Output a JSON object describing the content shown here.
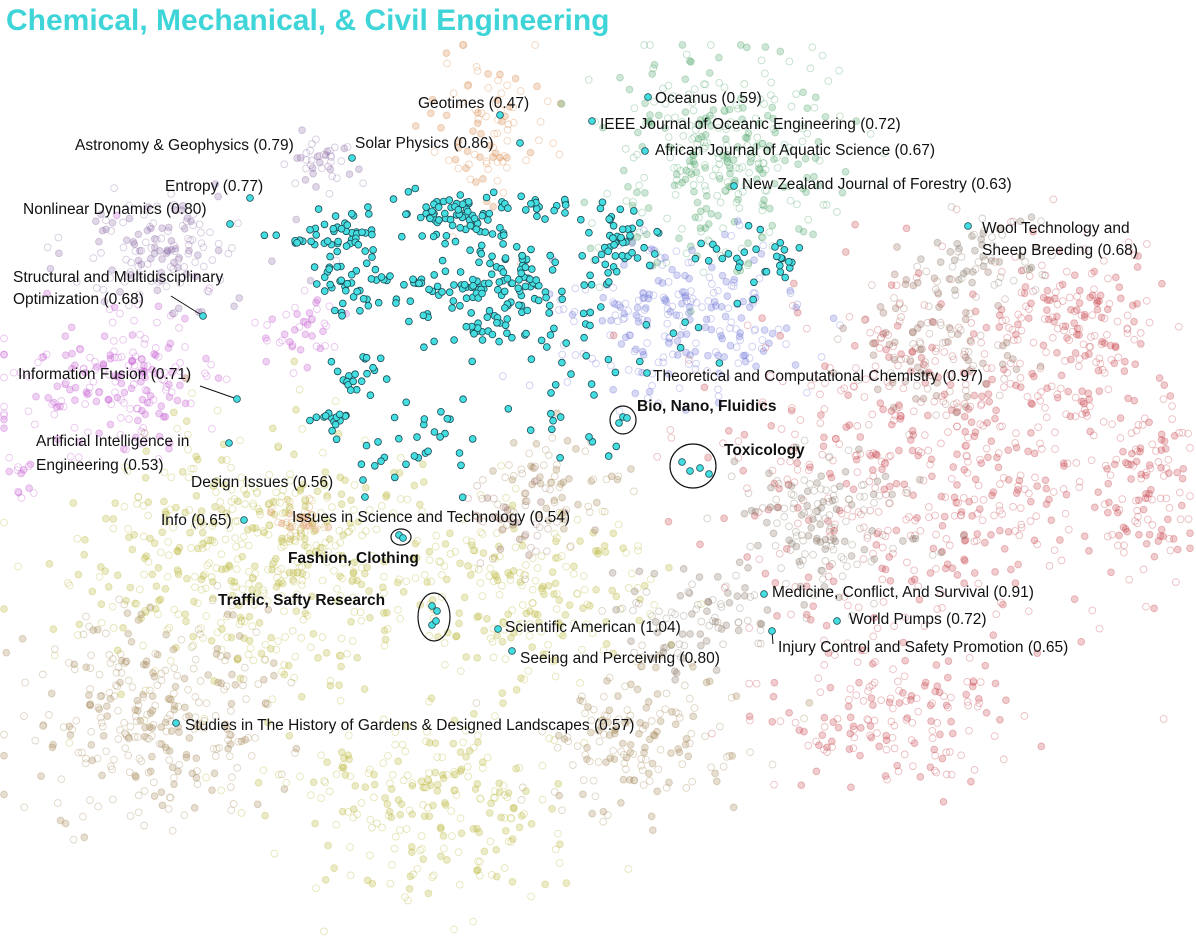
{
  "chart_data": {
    "type": "scatter",
    "title": "Chemical, Mechanical, & Civil Engineering",
    "xlabel": "",
    "ylabel": "",
    "grid": false,
    "legend": "none",
    "colors": {
      "title": "#3fd5d8",
      "highlight": "#44dde0",
      "highlight_edge": "#1a4a55"
    },
    "background_clusters": [
      {
        "color": "#8e6fa8"
      },
      {
        "color": "#c45bd1"
      },
      {
        "color": "#d98a4a"
      },
      {
        "color": "#4fa66a"
      },
      {
        "color": "#6f76d6"
      },
      {
        "color": "#b9b83a"
      },
      {
        "color": "#a78a5a"
      },
      {
        "color": "#c9474f"
      },
      {
        "color": "#8a7868"
      },
      {
        "color": "#9a6f62"
      }
    ],
    "annotations": [
      {
        "text": "Geotimes (0.47)",
        "bold": false
      },
      {
        "text": "Oceanus (0.59)",
        "bold": false
      },
      {
        "text": "IEEE Journal of Oceanic Engineering (0.72)",
        "bold": false
      },
      {
        "text": "Astronomy & Geophysics (0.79)",
        "bold": false
      },
      {
        "text": "Solar Physics (0.86)",
        "bold": false
      },
      {
        "text": "African Journal of Aquatic Science (0.67)",
        "bold": false
      },
      {
        "text": "Entropy (0.77)",
        "bold": false
      },
      {
        "text": "New Zealand Journal of Forestry (0.63)",
        "bold": false
      },
      {
        "text": "Nonlinear Dynamics (0.80)",
        "bold": false
      },
      {
        "text": "Wool Technology and",
        "bold": false
      },
      {
        "text": "Sheep Breeding (0.68)",
        "bold": false
      },
      {
        "text": "Structural and Multidisciplinary",
        "bold": false
      },
      {
        "text": "Optimization (0.68)",
        "bold": false
      },
      {
        "text": "Information Fusion (0.71)",
        "bold": false
      },
      {
        "text": "Theoretical and Computational Chemistry (0.97)",
        "bold": false
      },
      {
        "text": "Bio, Nano, Fluidics",
        "bold": true
      },
      {
        "text": "Artificial Intelligence in",
        "bold": false
      },
      {
        "text": "Engineering (0.53)",
        "bold": false
      },
      {
        "text": "Toxicology",
        "bold": true
      },
      {
        "text": "Design Issues (0.56)",
        "bold": false
      },
      {
        "text": "Info (0.65)",
        "bold": false
      },
      {
        "text": "Issues in Science and Technology (0.54)",
        "bold": false
      },
      {
        "text": "Fashion, Clothing",
        "bold": true
      },
      {
        "text": "Medicine, Conflict, And Survival (0.91)",
        "bold": false
      },
      {
        "text": "Traffic, Safty Research",
        "bold": true
      },
      {
        "text": "World Pumps (0.72)",
        "bold": false
      },
      {
        "text": "Scientific American (1.04)",
        "bold": false
      },
      {
        "text": "Injury Control and Safety Promotion (0.65)",
        "bold": false
      },
      {
        "text": "Seeing and Perceiving (0.80)",
        "bold": false
      },
      {
        "text": "Studies in The History of Gardens & Designed Landscapes (0.57)",
        "bold": false
      }
    ]
  }
}
